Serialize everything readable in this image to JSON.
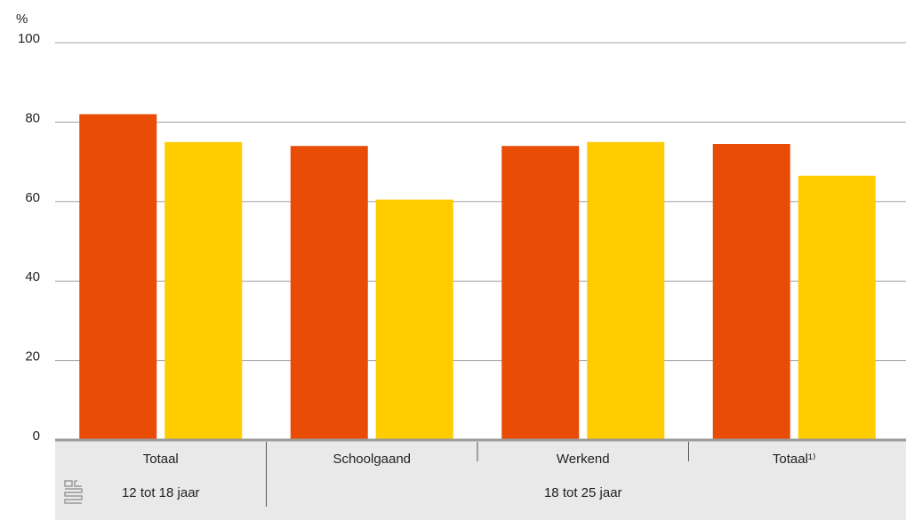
{
  "chart_data": {
    "type": "bar",
    "y_label": "%",
    "categories": [
      "Totaal",
      "Schoolgaand",
      "Werkend",
      "Totaal¹⁾"
    ],
    "groups": [
      {
        "label": "12 tot 18 jaar",
        "categories": 1
      },
      {
        "label": "18 tot 25 jaar",
        "categories": 3
      }
    ],
    "series": [
      {
        "color": "#e84c05",
        "values": [
          82,
          74,
          74,
          74.5
        ]
      },
      {
        "color": "#ffcc00",
        "values": [
          75,
          60.5,
          75,
          66.5
        ]
      }
    ],
    "ylim": [
      0,
      100
    ],
    "yticks": [
      0,
      20,
      40,
      60,
      80,
      100
    ],
    "grid": true
  }
}
